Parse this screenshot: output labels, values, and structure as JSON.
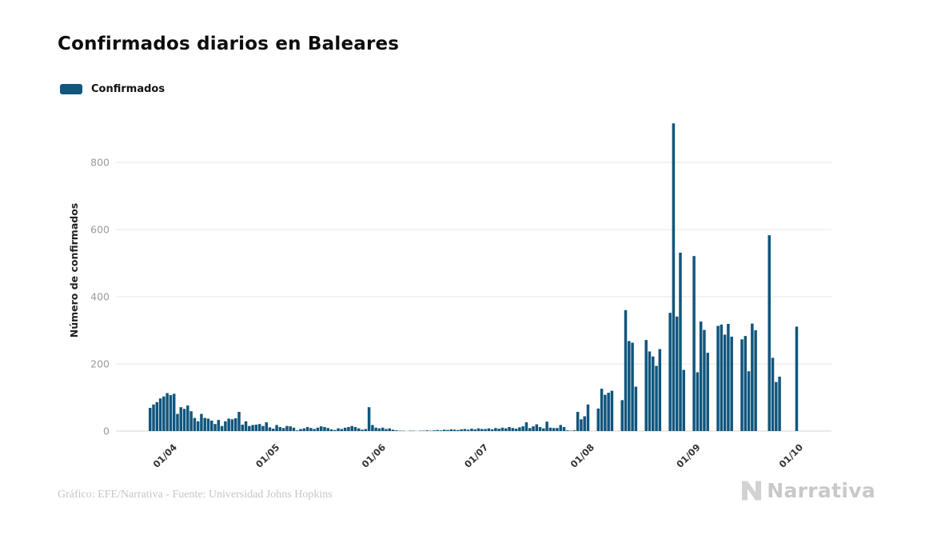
{
  "header": {
    "title": "Confirmados diarios en Baleares"
  },
  "legend": {
    "label": "Confirmados",
    "color": "#10567d"
  },
  "footer": {
    "credit": "Gráfico: EFE/Narrativa - Fuente: Universidad Johns Hopkins",
    "brand": "Narrativa"
  },
  "chart_data": {
    "type": "bar",
    "title": "Confirmados diarios en Baleares",
    "ylabel": "Número de confirmados",
    "xlabel": "",
    "ylim": [
      0,
      950
    ],
    "grid": true,
    "legend_position": "top-left",
    "start_date": "25/03",
    "y_ticks": [
      0,
      200,
      400,
      600,
      800
    ],
    "x_ticks": [
      {
        "label": "01/04",
        "day_index": 7
      },
      {
        "label": "01/05",
        "day_index": 37
      },
      {
        "label": "01/06",
        "day_index": 68
      },
      {
        "label": "01/07",
        "day_index": 98
      },
      {
        "label": "01/08",
        "day_index": 129
      },
      {
        "label": "01/09",
        "day_index": 160
      },
      {
        "label": "01/10",
        "day_index": 190
      }
    ],
    "series": [
      {
        "name": "Confirmados",
        "color": "#10567d",
        "values": [
          69,
          79,
          86,
          97,
          103,
          113,
          107,
          111,
          51,
          71,
          66,
          76,
          59,
          39,
          29,
          51,
          39,
          37,
          31,
          21,
          33,
          15,
          29,
          37,
          35,
          38,
          57,
          19,
          29,
          15,
          18,
          19,
          21,
          15,
          26,
          11,
          7,
          18,
          12,
          9,
          15,
          14,
          10,
          2,
          6,
          8,
          12,
          9,
          6,
          10,
          14,
          12,
          9,
          5,
          3,
          8,
          6,
          10,
          12,
          15,
          12,
          8,
          4,
          6,
          71,
          18,
          10,
          8,
          10,
          6,
          8,
          4,
          2,
          1,
          1,
          0,
          1,
          1,
          0,
          1,
          1,
          2,
          1,
          2,
          3,
          2,
          4,
          3,
          5,
          4,
          3,
          5,
          6,
          4,
          7,
          5,
          8,
          6,
          6,
          8,
          5,
          9,
          7,
          10,
          8,
          12,
          9,
          7,
          11,
          14,
          26,
          9,
          14,
          20,
          12,
          8,
          28,
          10,
          9,
          9,
          18,
          12,
          2,
          1,
          2,
          57,
          35,
          44,
          79,
          0,
          0,
          67,
          126,
          108,
          114,
          120,
          0,
          0,
          92,
          360,
          268,
          263,
          132,
          0,
          0,
          271,
          237,
          222,
          194,
          244,
          0,
          0,
          352,
          916,
          341,
          531,
          182,
          0,
          0,
          521,
          175,
          326,
          301,
          233,
          0,
          0,
          313,
          317,
          287,
          319,
          281,
          0,
          0,
          273,
          283,
          178,
          320,
          300,
          0,
          0,
          0,
          583,
          218,
          146,
          162,
          0,
          0,
          0,
          0,
          311
        ]
      }
    ]
  }
}
